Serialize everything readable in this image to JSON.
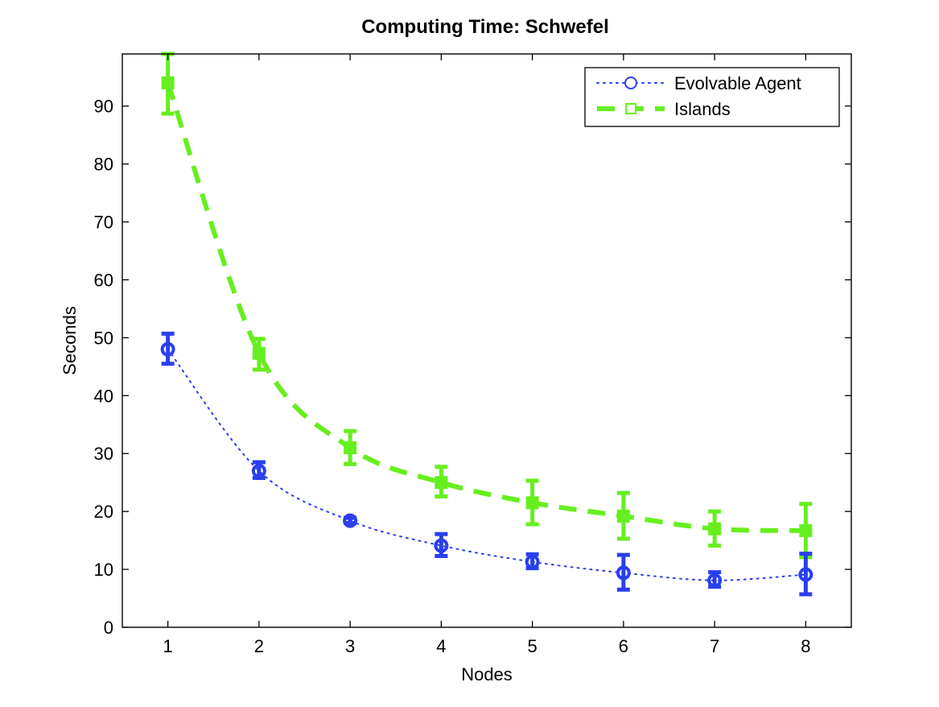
{
  "chart_data": {
    "type": "line",
    "title": "Computing Time: Schwefel",
    "xlabel": "Nodes",
    "ylabel": "Seconds",
    "xlim": [
      0.5,
      8.5
    ],
    "ylim": [
      0,
      99
    ],
    "xticks": [
      1,
      2,
      3,
      4,
      5,
      6,
      7,
      8
    ],
    "yticks": [
      0,
      10,
      20,
      30,
      40,
      50,
      60,
      70,
      80,
      90
    ],
    "grid": false,
    "legend_position": "top-right",
    "x": [
      1,
      2,
      3,
      4,
      5,
      6,
      7,
      8
    ],
    "series": [
      {
        "name": "Evolvable Agent",
        "color": "#2a3ff0",
        "line_style": "dotted",
        "marker": "circle",
        "values": [
          48,
          27,
          18.4,
          14.1,
          11.3,
          9.4,
          8.1,
          9.1
        ],
        "error_low": [
          45.5,
          25.8,
          18,
          12.3,
          10.2,
          6.5,
          7,
          5.7
        ],
        "error_high": [
          50.7,
          28.5,
          18.9,
          16.1,
          12.6,
          12.5,
          9.5,
          12.7
        ]
      },
      {
        "name": "Islands",
        "color": "#66ef1e",
        "line_style": "dashed",
        "marker": "square",
        "values": [
          94,
          47.3,
          31,
          25,
          21.5,
          19.2,
          17,
          16.7
        ],
        "error_low": [
          88.7,
          44.5,
          28.2,
          22.6,
          17.8,
          15.3,
          14.1,
          12.1
        ],
        "error_high": [
          99,
          49.8,
          33.9,
          27.7,
          25.3,
          23.2,
          20,
          21.3
        ]
      }
    ]
  }
}
